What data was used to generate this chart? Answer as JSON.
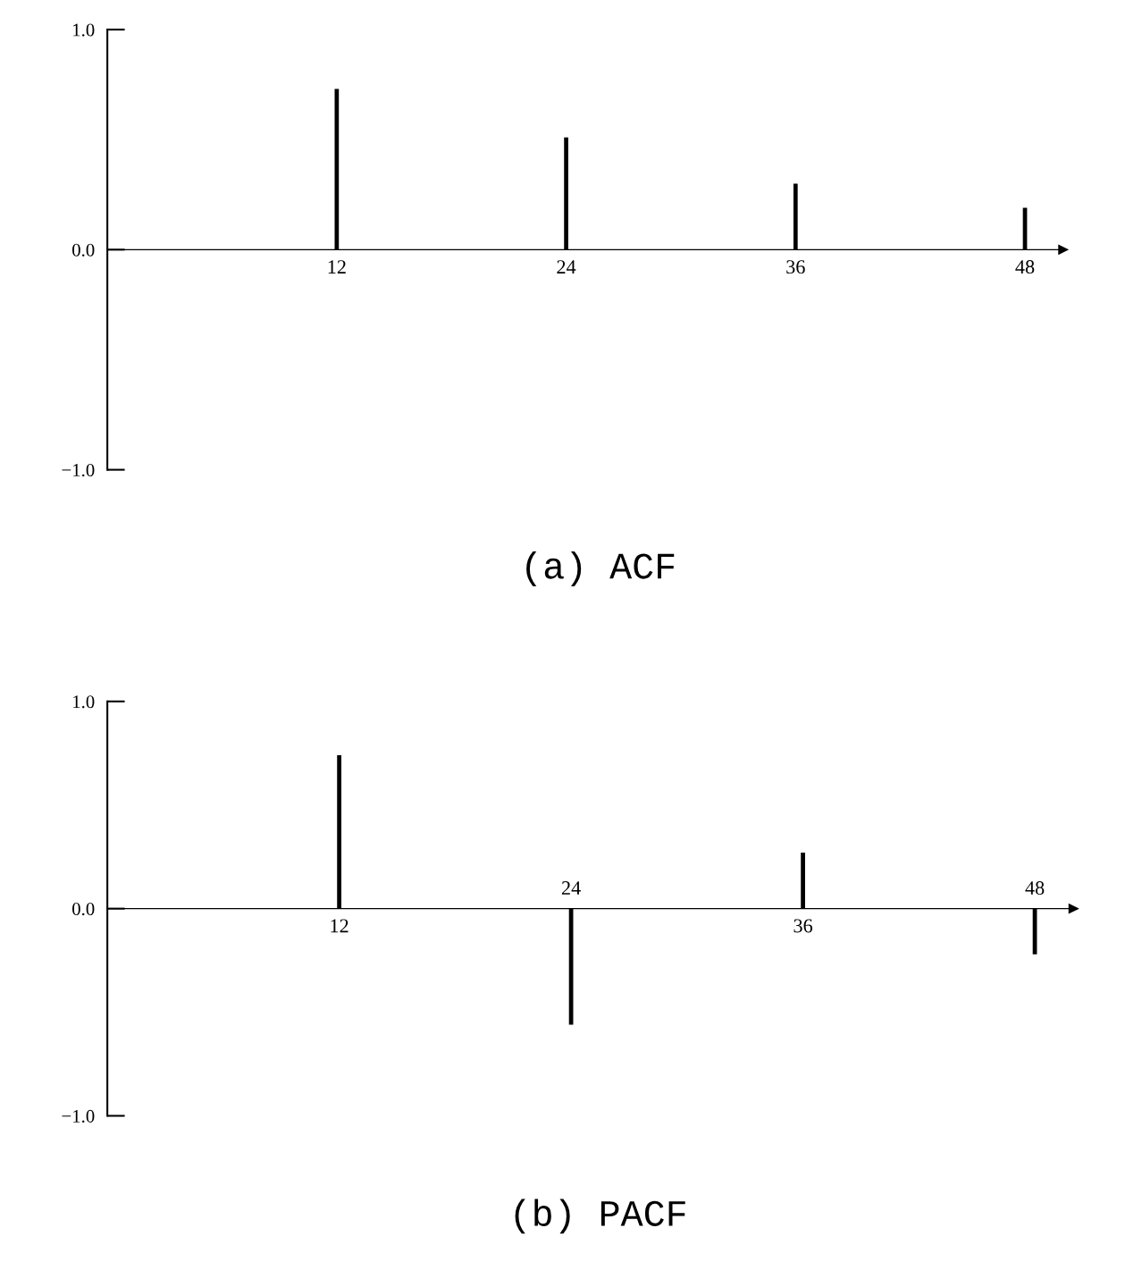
{
  "chart_data": [
    {
      "type": "bar",
      "title": "(a) ACF",
      "x": [
        12,
        24,
        36,
        48
      ],
      "values": [
        0.73,
        0.51,
        0.3,
        0.19
      ],
      "color": "#000000",
      "xlim": [
        0,
        50
      ],
      "xticks": [
        12,
        24,
        36,
        48
      ],
      "ylim": [
        -1,
        1
      ],
      "yticks": [
        {
          "value": -1,
          "label": "−1.0"
        },
        {
          "value": 0,
          "label": "0.0"
        },
        {
          "value": 1,
          "label": "1.0"
        }
      ]
    },
    {
      "type": "bar",
      "title": "(b) PACF",
      "x": [
        12,
        24,
        36,
        48
      ],
      "values": [
        0.74,
        -0.56,
        0.27,
        -0.22
      ],
      "color": "#000000",
      "xlim": [
        0,
        50
      ],
      "xticks": [
        12,
        36
      ],
      "annotations": [
        {
          "text": "24",
          "x": 24,
          "y": 0
        },
        {
          "text": "48",
          "x": 48,
          "y": 0
        }
      ],
      "ylim": [
        -1,
        1
      ],
      "yticks": [
        {
          "value": -1,
          "label": "−1.0"
        },
        {
          "value": 0,
          "label": "0.0"
        },
        {
          "value": 1,
          "label": "1.0"
        }
      ]
    }
  ]
}
